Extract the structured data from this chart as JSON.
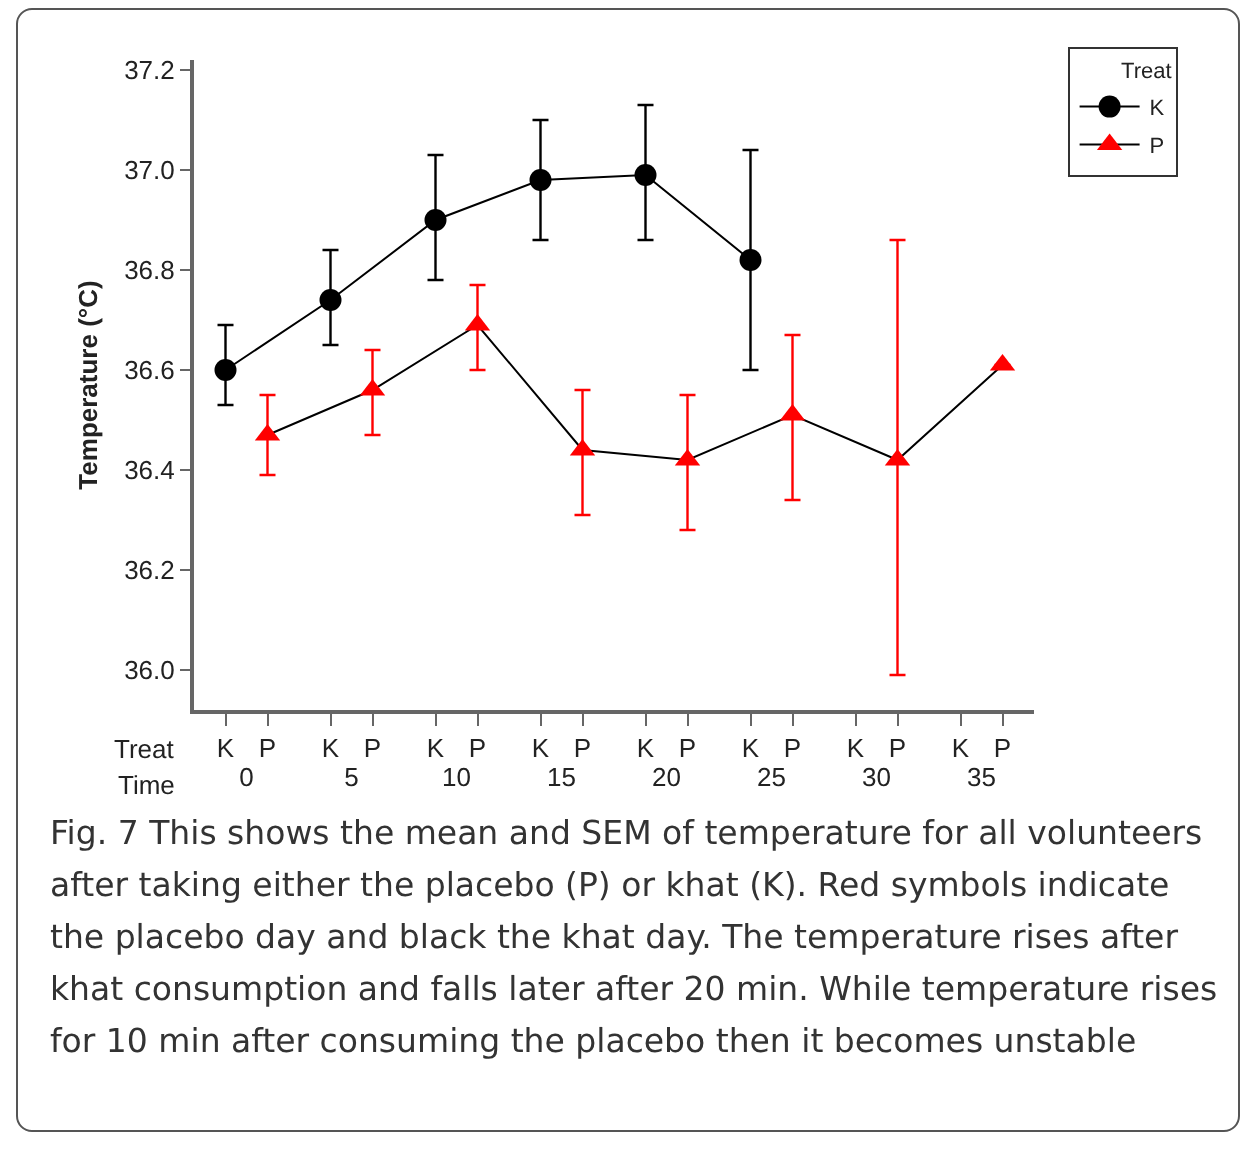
{
  "chart_data": {
    "type": "line",
    "ylabel": "Temperature (°C)",
    "xlabel": "Treat",
    "x2label": "Time",
    "categories": [
      "K",
      "P",
      "K",
      "P",
      "K",
      "P",
      "K",
      "P",
      "K",
      "P",
      "K",
      "P",
      "K",
      "P",
      "K",
      "P"
    ],
    "x2lim": [
      -2.5,
      37.5
    ],
    "x2ticks": [
      0,
      5,
      10,
      15,
      20,
      25,
      30,
      35
    ],
    "ylim": [
      35.92,
      37.22
    ],
    "yticks": [
      {
        "value": 36.0,
        "label": "36.0"
      },
      {
        "value": 36.2,
        "label": "36.2"
      },
      {
        "value": 36.4,
        "label": "36.4"
      },
      {
        "value": 36.6,
        "label": "36.6"
      },
      {
        "value": 36.8,
        "label": "36.8"
      },
      {
        "value": 37.0,
        "label": "37.0"
      },
      {
        "value": 37.2,
        "label": "37.2"
      }
    ],
    "series": [
      {
        "name": "K",
        "color": "#000000",
        "marker": "circle",
        "values": [
          36.6,
          null,
          36.74,
          null,
          36.9,
          null,
          36.98,
          null,
          36.99,
          null,
          36.82,
          null,
          null,
          null,
          null,
          null
        ],
        "errors": [
          [
            36.53,
            36.69
          ],
          null,
          [
            36.65,
            36.84
          ],
          null,
          [
            36.78,
            37.03
          ],
          null,
          [
            36.86,
            37.1
          ],
          null,
          [
            36.86,
            37.13
          ],
          null,
          [
            36.6,
            37.04
          ],
          null,
          null,
          null,
          null,
          null
        ]
      },
      {
        "name": "P",
        "color": "#ff0000",
        "marker": "triangle",
        "values": [
          null,
          36.47,
          null,
          36.56,
          null,
          36.69,
          null,
          36.44,
          null,
          36.42,
          null,
          36.51,
          null,
          36.42,
          null,
          36.61
        ],
        "errors": [
          null,
          [
            36.39,
            36.55
          ],
          null,
          [
            36.47,
            36.64
          ],
          null,
          [
            36.6,
            36.77
          ],
          null,
          [
            36.31,
            36.56
          ],
          null,
          [
            36.28,
            36.55
          ],
          null,
          [
            36.34,
            36.67
          ],
          null,
          [
            35.99,
            36.86
          ],
          null,
          null
        ]
      }
    ],
    "legend": "top right",
    "legend_title": "Treat",
    "grid": false,
    "annotations": [
      "Fig. 7 This shows the mean and SEM of temperature for all volunteers after taking either the placebo (P) or khat (K). Red symbols indicate the placebo day and black the khat day. The temperature rises after khat consumption and falls later after 20 min. While temperature rises for 10 min after consuming the placebo then it becomes unstable"
    ]
  }
}
